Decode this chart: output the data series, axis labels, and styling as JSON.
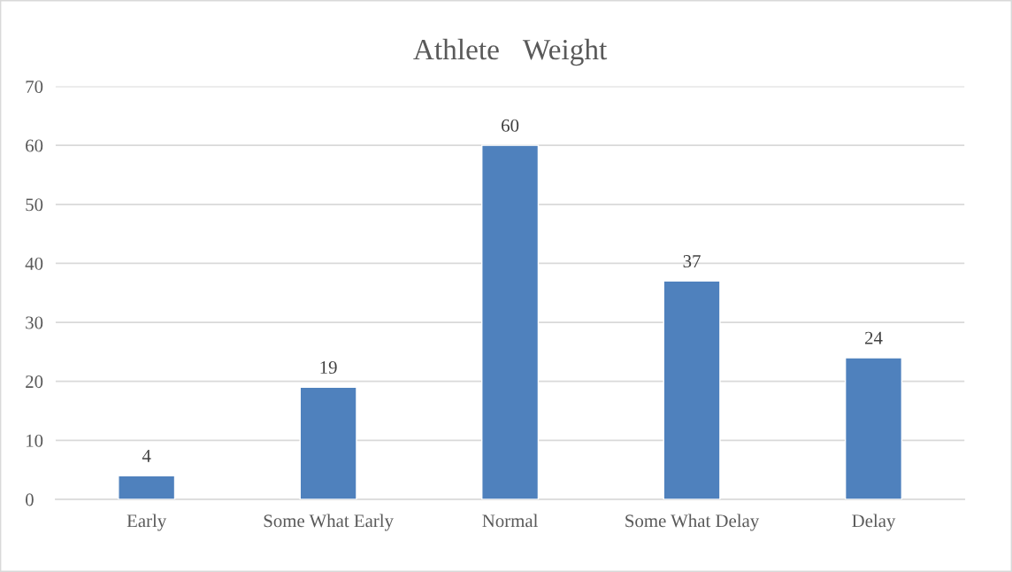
{
  "chart_data": {
    "type": "bar",
    "title": "Athlete　Weight",
    "categories": [
      "Early",
      "Some What Early",
      "Normal",
      "Some What Delay",
      "Delay"
    ],
    "values": [
      4,
      19,
      60,
      37,
      24
    ],
    "color": "#4f81bd",
    "ylim": [
      0,
      70
    ],
    "yticks": [
      0,
      10,
      20,
      30,
      40,
      50,
      60,
      70
    ],
    "grid": "y",
    "data_labels": true
  }
}
